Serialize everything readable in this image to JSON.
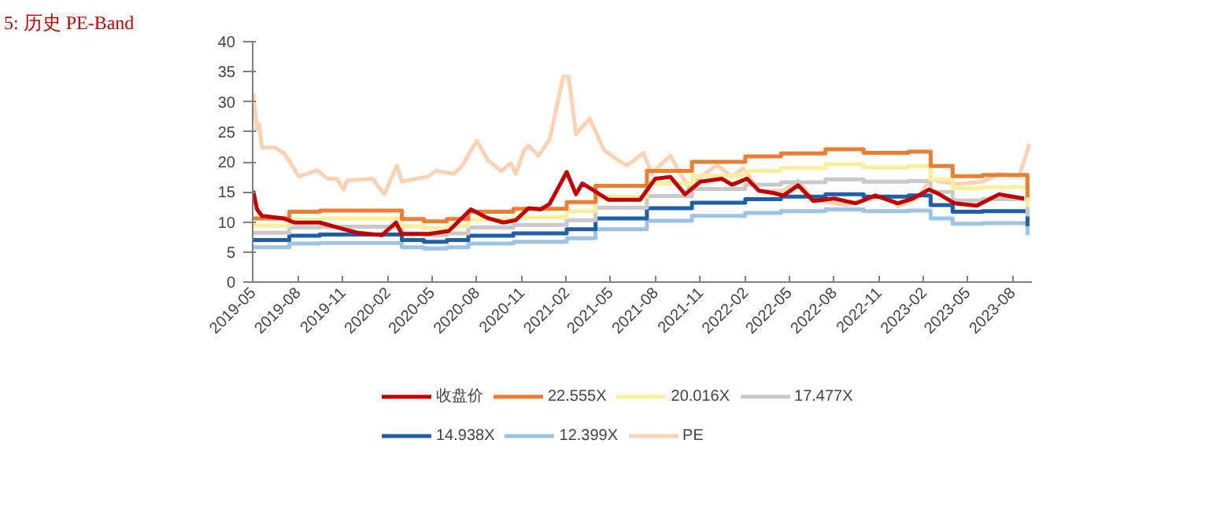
{
  "chart_data": {
    "type": "line",
    "title": "5:   历史 PE-Band",
    "xlim": [
      "2019-05-01",
      "2023-09-10"
    ],
    "xticks": [
      "2019-05",
      "2019-08",
      "2019-11",
      "2020-02",
      "2020-05",
      "2020-08",
      "2020-11",
      "2021-02",
      "2021-05",
      "2021-08",
      "2021-11",
      "2022-02",
      "2022-05",
      "2022-08",
      "2022-11",
      "2023-02",
      "2023-05",
      "2023-08"
    ],
    "ylim": [
      0,
      40
    ],
    "yticks": [
      0,
      5,
      10,
      15,
      20,
      25,
      30,
      35,
      40
    ],
    "grid": false,
    "legend": "bottom",
    "marker": "none",
    "line_style": "solid",
    "series": [
      {
        "name": "收盘价",
        "color": "#c00000",
        "type": "line",
        "x": [
          "2019-05-02",
          "2019-05-10",
          "2019-05-20",
          "2019-07-03",
          "2019-07-25",
          "2019-09-15",
          "2019-10-25",
          "2019-12-01",
          "2020-01-20",
          "2020-02-18",
          "2020-03-01",
          "2020-04-25",
          "2020-06-05",
          "2020-07-20",
          "2020-08-25",
          "2020-09-25",
          "2020-10-20",
          "2020-11-15",
          "2020-12-10",
          "2020-12-28",
          "2021-02-01",
          "2021-02-20",
          "2021-03-05",
          "2021-03-25",
          "2021-04-27",
          "2021-07-01",
          "2021-08-01",
          "2021-09-01",
          "2021-10-01",
          "2021-11-01",
          "2021-12-15",
          "2022-01-05",
          "2022-02-05",
          "2022-03-01",
          "2022-04-01",
          "2022-04-20",
          "2022-05-20",
          "2022-06-20",
          "2022-08-01",
          "2022-09-15",
          "2022-10-25",
          "2022-12-10",
          "2023-01-10",
          "2023-02-12",
          "2023-03-05",
          "2023-04-05",
          "2023-05-20",
          "2023-07-05",
          "2023-08-25"
        ],
        "values": [
          15.2,
          12.1,
          11.0,
          10.6,
          9.9,
          9.9,
          9.0,
          8.2,
          7.8,
          9.9,
          8.0,
          8.0,
          8.5,
          12.1,
          10.6,
          9.9,
          10.3,
          12.3,
          12.1,
          13.0,
          18.3,
          14.6,
          16.4,
          15.4,
          13.7,
          13.7,
          17.2,
          17.5,
          14.6,
          16.7,
          17.2,
          16.2,
          17.2,
          15.2,
          14.8,
          14.4,
          16.1,
          13.5,
          13.9,
          13.1,
          14.4,
          13.1,
          13.9,
          15.4,
          14.6,
          13.1,
          12.7,
          14.6,
          13.9
        ]
      },
      {
        "name": "22.555X",
        "color": "#ed7d31",
        "type": "step",
        "x": [
          "2019-05-01",
          "2019-07-15",
          "2019-09-15",
          "2020-03-01",
          "2020-04-15",
          "2020-06-01",
          "2020-07-15",
          "2020-10-15",
          "2021-02-01",
          "2021-04-01",
          "2021-07-15",
          "2021-10-15",
          "2022-02-01",
          "2022-04-15",
          "2022-07-15",
          "2022-10-01",
          "2023-01-01",
          "2023-02-15",
          "2023-04-01",
          "2023-06-01",
          "2023-09-01"
        ],
        "values": [
          10.6,
          11.7,
          11.9,
          10.5,
          10.1,
          10.5,
          11.7,
          12.2,
          13.3,
          16.0,
          18.5,
          20.0,
          20.9,
          21.4,
          22.1,
          21.5,
          21.7,
          19.3,
          17.6,
          17.8,
          14.1
        ]
      },
      {
        "name": "20.016X",
        "color": "#fbee9c",
        "type": "step",
        "x": [
          "2019-05-01",
          "2019-07-15",
          "2019-09-15",
          "2020-03-01",
          "2020-04-15",
          "2020-06-01",
          "2020-07-15",
          "2020-10-15",
          "2021-02-01",
          "2021-04-01",
          "2021-07-15",
          "2021-10-15",
          "2022-02-01",
          "2022-04-15",
          "2022-07-15",
          "2022-10-01",
          "2023-01-01",
          "2023-02-15",
          "2023-04-01",
          "2023-06-01",
          "2023-09-01"
        ],
        "values": [
          9.4,
          10.4,
          10.6,
          9.3,
          9.0,
          9.3,
          10.4,
          10.8,
          11.8,
          14.2,
          16.4,
          17.7,
          18.5,
          19.0,
          19.6,
          19.1,
          19.3,
          17.1,
          15.6,
          15.8,
          12.5
        ]
      },
      {
        "name": "17.477X",
        "color": "#c9c9c9",
        "type": "step",
        "x": [
          "2019-05-01",
          "2019-07-15",
          "2019-09-15",
          "2020-03-01",
          "2020-04-15",
          "2020-06-01",
          "2020-07-15",
          "2020-10-15",
          "2021-02-01",
          "2021-04-01",
          "2021-07-15",
          "2021-10-15",
          "2022-02-01",
          "2022-04-15",
          "2022-07-15",
          "2022-10-01",
          "2023-01-01",
          "2023-02-15",
          "2023-04-01",
          "2023-06-01",
          "2023-09-01"
        ],
        "values": [
          8.2,
          9.1,
          9.2,
          8.1,
          7.8,
          8.1,
          9.1,
          9.5,
          10.3,
          12.4,
          14.3,
          15.5,
          16.2,
          16.6,
          17.1,
          16.7,
          16.8,
          15.0,
          13.6,
          13.8,
          10.9
        ]
      },
      {
        "name": "14.938X",
        "color": "#1f5fa8",
        "type": "step",
        "x": [
          "2019-05-01",
          "2019-07-15",
          "2019-09-15",
          "2020-03-01",
          "2020-04-15",
          "2020-06-01",
          "2020-07-15",
          "2020-10-15",
          "2021-02-01",
          "2021-04-01",
          "2021-07-15",
          "2021-10-15",
          "2022-02-01",
          "2022-04-15",
          "2022-07-15",
          "2022-10-01",
          "2023-01-01",
          "2023-02-15",
          "2023-04-01",
          "2023-06-01",
          "2023-09-01"
        ],
        "values": [
          7.0,
          7.7,
          7.9,
          7.0,
          6.7,
          7.0,
          7.7,
          8.1,
          8.8,
          10.6,
          12.3,
          13.2,
          13.8,
          14.2,
          14.6,
          14.2,
          14.4,
          12.8,
          11.7,
          11.8,
          9.3
        ]
      },
      {
        "name": "12.399X",
        "color": "#9dc3e6",
        "type": "step",
        "x": [
          "2019-05-01",
          "2019-07-15",
          "2019-09-15",
          "2020-03-01",
          "2020-04-15",
          "2020-06-01",
          "2020-07-15",
          "2020-10-15",
          "2021-02-01",
          "2021-04-01",
          "2021-07-15",
          "2021-10-15",
          "2022-02-01",
          "2022-04-15",
          "2022-07-15",
          "2022-10-01",
          "2023-01-01",
          "2023-02-15",
          "2023-04-01",
          "2023-06-01",
          "2023-09-01"
        ],
        "values": [
          5.8,
          6.4,
          6.5,
          5.8,
          5.6,
          5.8,
          6.4,
          6.7,
          7.3,
          8.8,
          10.2,
          11.0,
          11.5,
          11.8,
          12.1,
          11.8,
          11.9,
          10.6,
          9.7,
          9.8,
          7.8
        ]
      },
      {
        "name": "PE",
        "color": "#fbd3b4",
        "type": "line",
        "x": [
          "2019-05-02",
          "2019-05-10",
          "2019-05-14",
          "2019-05-20",
          "2019-06-15",
          "2019-07-03",
          "2019-07-15",
          "2019-08-03",
          "2019-08-20",
          "2019-09-10",
          "2019-10-01",
          "2019-10-20",
          "2019-11-03",
          "2019-11-10",
          "2020-01-01",
          "2020-01-25",
          "2020-02-20",
          "2020-03-01",
          "2020-04-25",
          "2020-05-10",
          "2020-06-15",
          "2020-07-01",
          "2020-08-01",
          "2020-08-25",
          "2020-09-20",
          "2020-10-10",
          "2020-10-20",
          "2020-11-05",
          "2020-11-15",
          "2020-12-05",
          "2020-12-28",
          "2021-01-25",
          "2021-02-05",
          "2021-02-20",
          "2021-03-20",
          "2021-04-18",
          "2021-05-18",
          "2021-06-05",
          "2021-07-08",
          "2021-07-25",
          "2021-08-10",
          "2021-09-01",
          "2021-10-10",
          "2021-11-03",
          "2021-12-05",
          "2022-01-05",
          "2022-01-28",
          "2022-03-01",
          "2022-04-20",
          "2022-05-20",
          "2022-06-20",
          "2022-08-25",
          "2022-10-08",
          "2022-11-20",
          "2022-12-10",
          "2023-01-20",
          "2023-02-15",
          "2023-03-05",
          "2023-04-15",
          "2023-06-01",
          "2023-07-05",
          "2023-08-15",
          "2023-09-05"
        ],
        "values": [
          31.5,
          25.4,
          26.3,
          22.4,
          22.4,
          21.5,
          20.2,
          17.6,
          18.0,
          18.6,
          17.2,
          17.2,
          15.4,
          16.9,
          17.2,
          14.6,
          19.4,
          16.7,
          17.6,
          18.5,
          18.0,
          19.2,
          23.5,
          20.2,
          18.5,
          19.8,
          18.0,
          21.8,
          22.7,
          21.0,
          23.7,
          34.2,
          34.2,
          24.6,
          27.2,
          22.0,
          20.2,
          19.4,
          21.5,
          18.0,
          19.4,
          21.0,
          15.4,
          17.6,
          19.4,
          17.6,
          18.9,
          15.2,
          15.2,
          16.9,
          13.7,
          12.8,
          13.7,
          14.3,
          12.6,
          14.1,
          17.2,
          16.7,
          16.3,
          16.7,
          18.0,
          17.6,
          22.9
        ]
      }
    ]
  }
}
